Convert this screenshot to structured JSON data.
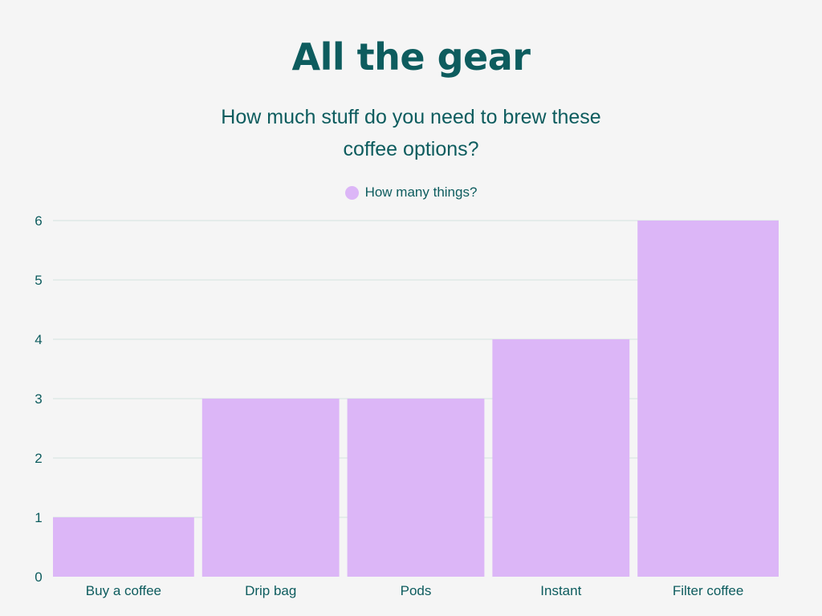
{
  "title": "All the gear",
  "subtitle_lines": [
    "How much stuff do you need to brew these",
    "coffee options?"
  ],
  "legend": {
    "label": "How many things?",
    "position": "top-center"
  },
  "colors": {
    "bar": "#dcb6f7",
    "text": "#0d5c5e",
    "grid": "#d4e3e0",
    "background": "#f5f5f5"
  },
  "chart_data": {
    "type": "bar",
    "title": "All the gear",
    "subtitle": "How much stuff do you need to brew these coffee options?",
    "categories": [
      "Buy a coffee",
      "Drip bag",
      "Pods",
      "Instant",
      "Filter coffee"
    ],
    "series": [
      {
        "name": "How many things?",
        "values": [
          1,
          3,
          3,
          4,
          6
        ]
      }
    ],
    "xlabel": "",
    "ylabel": "",
    "ylim": [
      0,
      6
    ],
    "yticks": [
      0,
      1,
      2,
      3,
      4,
      5,
      6
    ],
    "grid": true,
    "legend": "top-center"
  }
}
